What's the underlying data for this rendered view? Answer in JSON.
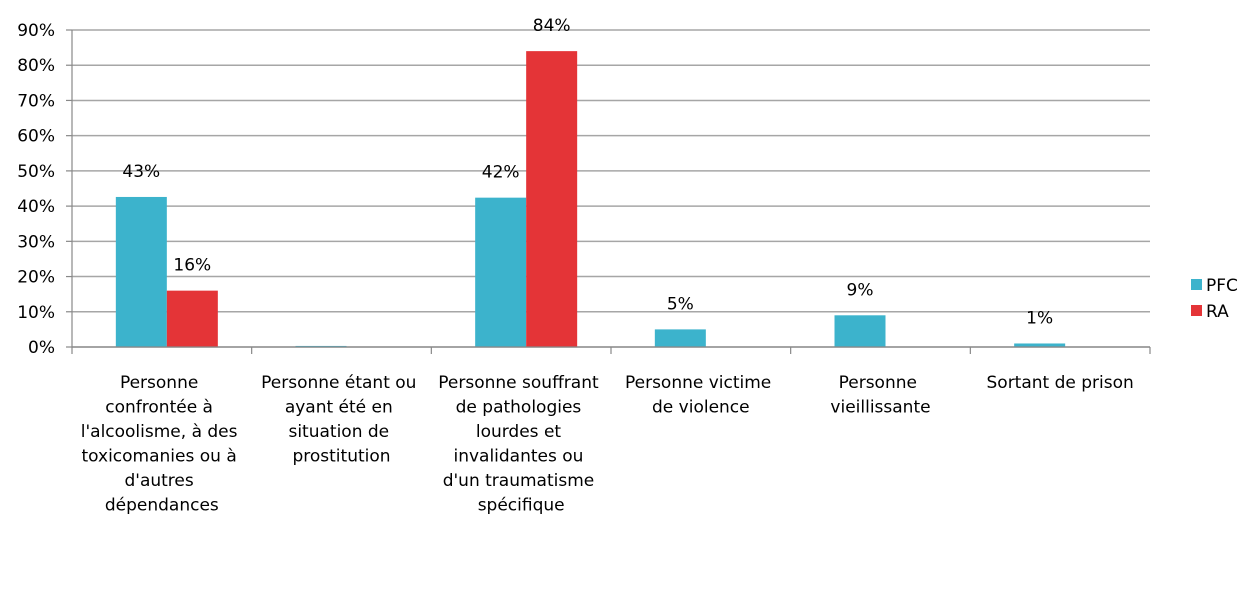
{
  "chart_data": {
    "type": "bar",
    "categories": [
      "Personne confrontée à l'alcoolisme, à des toxicomanies ou à d'autres dépendances",
      "Personne étant ou ayant été en situation de prostitution",
      "Personne souffrant de pathologies lourdes et invalidantes ou d'un traumatisme spécifique",
      "Personne victime de violence",
      "Personne vieillissante",
      "Sortant de prison"
    ],
    "series": [
      {
        "name": "PFC",
        "color": "#3cb3cc",
        "values": [
          42.6,
          0.3,
          42.4,
          5,
          9,
          1
        ],
        "value_labels": [
          "43%",
          null,
          "42%",
          "5%",
          "9%",
          "1%"
        ]
      },
      {
        "name": "RA",
        "color": "#e43437",
        "values": [
          16,
          null,
          84,
          null,
          null,
          null
        ],
        "value_labels": [
          "16%",
          null,
          "84%",
          null,
          null,
          null
        ]
      }
    ],
    "ylim": [
      0,
      90
    ],
    "yticks": [
      {
        "value": 0,
        "label": "0%"
      },
      {
        "value": 10,
        "label": "10%"
      },
      {
        "value": 20,
        "label": "20%"
      },
      {
        "value": 30,
        "label": "30%"
      },
      {
        "value": 40,
        "label": "40%"
      },
      {
        "value": 50,
        "label": "50%"
      },
      {
        "value": 60,
        "label": "60%"
      },
      {
        "value": 70,
        "label": "70%"
      },
      {
        "value": 80,
        "label": "80%"
      },
      {
        "value": 90,
        "label": "90%"
      }
    ],
    "grid": true,
    "legend": "right"
  }
}
